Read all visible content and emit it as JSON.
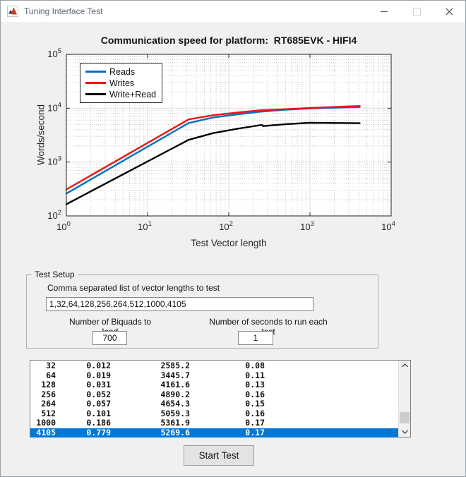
{
  "window": {
    "title": "Tuning Interface Test",
    "icons": {
      "app": "matlab-logo",
      "minimize": "minimize",
      "maximize": "maximize",
      "close": "close"
    }
  },
  "chart_data": {
    "type": "line",
    "scale": "log-log",
    "title": "Communication speed for platform:  RT685EVK - HIFI4",
    "xlabel": "Test Vector length",
    "ylabel": "Words/second",
    "xlim": [
      1,
      10000
    ],
    "ylim": [
      100,
      100000
    ],
    "x_tick_exponents": [
      0,
      1,
      2,
      3,
      4
    ],
    "y_tick_exponents": [
      2,
      3,
      4,
      5
    ],
    "grid": true,
    "legend_position": "top-left",
    "x": [
      1,
      32,
      64,
      128,
      256,
      264,
      512,
      1000,
      4105
    ],
    "series": [
      {
        "name": "Reads",
        "color": "#0072BD",
        "values": [
          260,
          5300,
          6700,
          7700,
          8700,
          8700,
          9400,
          9900,
          10500
        ]
      },
      {
        "name": "Writes",
        "color": "#F01414",
        "values": [
          310,
          6200,
          7400,
          8300,
          9200,
          9200,
          9600,
          10100,
          11000
        ]
      },
      {
        "name": "Write+Read",
        "color": "#000000",
        "values": [
          165,
          2585.2,
          3445.7,
          4161.6,
          4890.2,
          4654.3,
          5059.3,
          5361.9,
          5269.6
        ]
      }
    ]
  },
  "test_setup": {
    "group_label": "Test Setup",
    "vector_list_label": "Comma separated list of vector lengths to test",
    "vector_list_value": "1,32,64,128,256,264,512,1000,4105",
    "biquads_label": "Number of Biquads to load",
    "biquads_value": "700",
    "seconds_label": "Number of seconds to run each test",
    "seconds_value": "1"
  },
  "results": {
    "rows": [
      [
        "32",
        "0.012",
        "2585.2",
        "0.08"
      ],
      [
        "64",
        "0.019",
        "3445.7",
        "0.11"
      ],
      [
        "128",
        "0.031",
        "4161.6",
        "0.13"
      ],
      [
        "256",
        "0.052",
        "4890.2",
        "0.16"
      ],
      [
        "264",
        "0.057",
        "4654.3",
        "0.15"
      ],
      [
        "512",
        "0.101",
        "5059.3",
        "0.16"
      ],
      [
        "1000",
        "0.186",
        "5361.9",
        "0.17"
      ],
      [
        "4105",
        "0.779",
        "5269.6",
        "0.17"
      ]
    ],
    "selected_index": 7
  },
  "start_button_label": "Start Test",
  "colors": {
    "selection": "#0078D7",
    "figure_background": "#f0f0f0",
    "plot_background": "#ffffff"
  }
}
